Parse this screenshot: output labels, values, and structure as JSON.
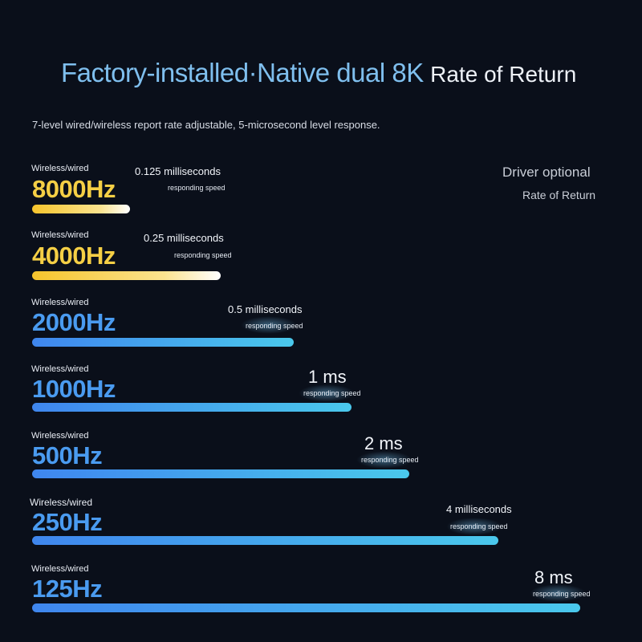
{
  "header": {
    "title_main": "Factory-installed·Native dual 8K",
    "title_suffix": "Rate of Return",
    "subtitle": "7-level wired/wireless report rate adjustable, 5-microsecond level response."
  },
  "driver_note": {
    "line1": "Driver optional",
    "line2": "Rate of Return"
  },
  "rates": [
    {
      "prefix": "Wireless/wired",
      "hz": "8000Hz",
      "ms": "0.125 milliseconds",
      "speed": "responding speed",
      "fill": 0.18
    },
    {
      "prefix": "Wireless/wired",
      "hz": "4000Hz",
      "ms": "0.25 milliseconds",
      "speed": "responding speed",
      "fill": 0.35
    },
    {
      "prefix": "Wireless/wired",
      "hz": "2000Hz",
      "ms": "0.5 milliseconds",
      "speed": "responding speed",
      "fill": 0.47
    },
    {
      "prefix": "Wireless/wired",
      "hz": "1000Hz",
      "ms": "1 ms",
      "speed": "responding speed",
      "fill": 0.57
    },
    {
      "prefix": "Wireless/wired",
      "hz": "500Hz",
      "ms": "2 ms",
      "speed": "responding speed",
      "fill": 0.67
    },
    {
      "prefix": "Wireless/wired",
      "hz": "250Hz",
      "ms": "4 milliseconds",
      "speed": "responding speed",
      "fill": 0.83
    },
    {
      "prefix": "Wireless/wired",
      "hz": "125Hz",
      "ms": "8 ms",
      "speed": "responding speed",
      "fill": 0.98
    }
  ]
}
